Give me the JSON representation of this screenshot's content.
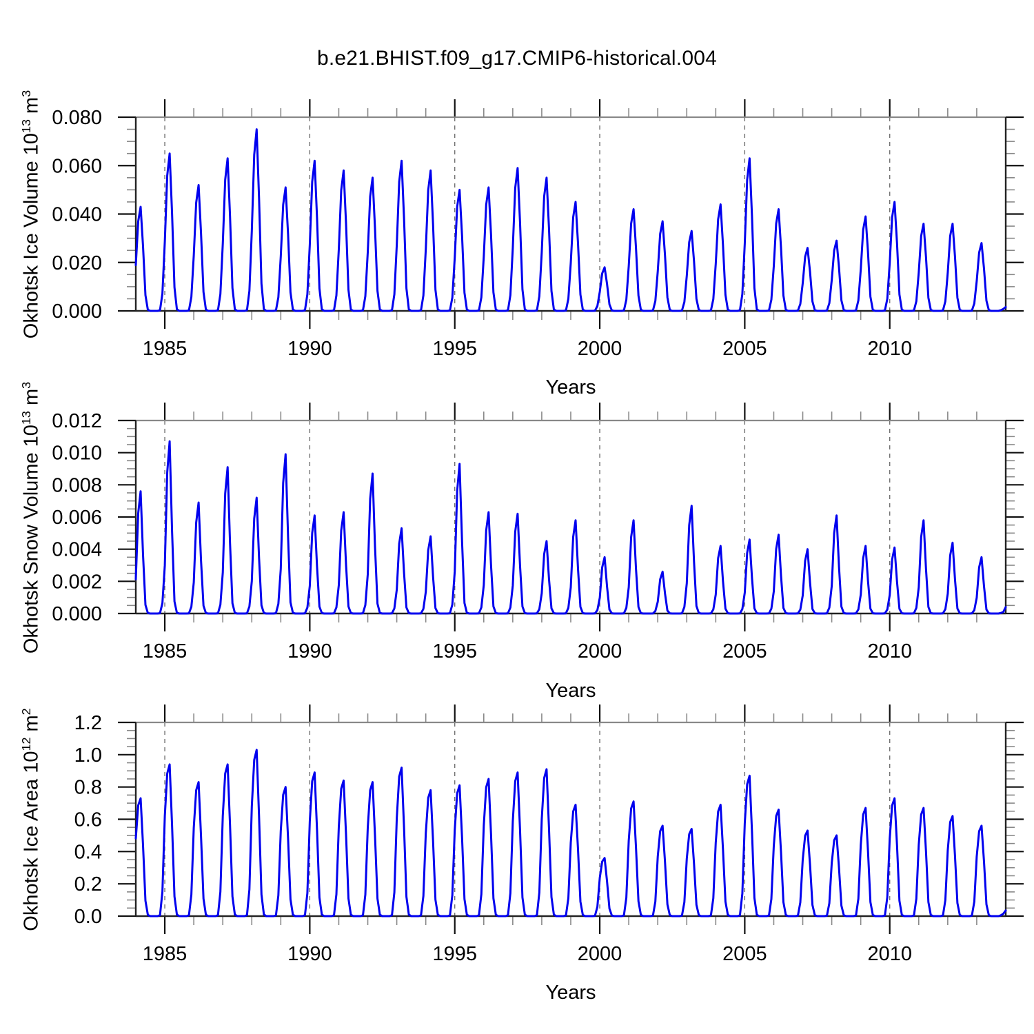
{
  "chart_data": {
    "type": "line",
    "title": "b.e21.BHIST.f09_g17.CMIP6-historical.004",
    "xlabel": "Years",
    "line_color": "#0000ee",
    "grid_color": "#666666",
    "x_start_year": 1984,
    "x_end_year": 2014,
    "xtick_major": [
      1985,
      1990,
      1995,
      2000,
      2005,
      2010
    ],
    "xtick_labels": [
      "1985",
      "1990",
      "1995",
      "2000",
      "2005",
      "2010"
    ],
    "grid_years": [
      1985,
      1990,
      1995,
      2000,
      2005,
      2010
    ],
    "legend": "none",
    "grid": "vertical-dashed",
    "panels": [
      {
        "id": "ice-volume",
        "ylabel_base": "Okhotsk Ice Volume 10",
        "ylabel_exp": "13",
        "ylabel_unit": " m",
        "ylabel_unit_exp": "3",
        "ymax": 0.08,
        "ytick_values": [
          0,
          0.02,
          0.04,
          0.06,
          0.08
        ],
        "ytick_labels": [
          "0.000",
          "0.020",
          "0.040",
          "0.060",
          "0.080"
        ],
        "yminor_step": 0.005,
        "first_year": 1984,
        "annual_peaks": [
          0.043,
          0.065,
          0.052,
          0.063,
          0.075,
          0.051,
          0.062,
          0.058,
          0.055,
          0.062,
          0.058,
          0.05,
          0.051,
          0.059,
          0.055,
          0.045,
          0.018,
          0.042,
          0.037,
          0.033,
          0.044,
          0.063,
          0.042,
          0.026,
          0.029,
          0.039,
          0.045,
          0.036,
          0.036,
          0.028
        ],
        "monthly_shape": [
          0.44,
          0.86,
          1.0,
          0.62,
          0.15,
          0.01,
          0,
          0,
          0,
          0,
          0.004,
          0.11
        ],
        "dec_2013": 0.0008,
        "end_2014": 0.0016
      },
      {
        "id": "snow-volume",
        "ylabel_base": "Okhotsk Snow Volume 10",
        "ylabel_exp": "13",
        "ylabel_unit": " m",
        "ylabel_unit_exp": "3",
        "ymax": 0.012,
        "ytick_values": [
          0,
          0.002,
          0.004,
          0.006,
          0.008,
          0.01,
          0.012
        ],
        "ytick_labels": [
          "0.000",
          "0.002",
          "0.004",
          "0.006",
          "0.008",
          "0.010",
          "0.012"
        ],
        "yminor_step": 0.0005,
        "first_year": 1984,
        "annual_peaks": [
          0.0076,
          0.0107,
          0.0069,
          0.0091,
          0.0072,
          0.0099,
          0.0061,
          0.0063,
          0.0087,
          0.0053,
          0.0048,
          0.0093,
          0.0063,
          0.0062,
          0.0045,
          0.0058,
          0.0035,
          0.0058,
          0.0026,
          0.0067,
          0.0042,
          0.0046,
          0.0049,
          0.004,
          0.0061,
          0.0042,
          0.0041,
          0.0058,
          0.0044,
          0.0035
        ],
        "monthly_shape": [
          0.28,
          0.82,
          1.0,
          0.48,
          0.07,
          0.004,
          0,
          0,
          0,
          0,
          0.002,
          0.06
        ],
        "dec_2013": 0.0001,
        "end_2014": 0.0004
      },
      {
        "id": "ice-area",
        "ylabel_base": "Okhotsk Ice Area 10",
        "ylabel_exp": "12",
        "ylabel_unit": " m",
        "ylabel_unit_exp": "2",
        "ymax": 1.2,
        "ytick_values": [
          0,
          0.2,
          0.4,
          0.6,
          0.8,
          1.0,
          1.2
        ],
        "ytick_labels": [
          "0.0",
          "0.2",
          "0.4",
          "0.6",
          "0.8",
          "1.0",
          "1.2"
        ],
        "yminor_step": 0.05,
        "first_year": 1984,
        "annual_peaks": [
          0.73,
          0.94,
          0.83,
          0.94,
          1.03,
          0.8,
          0.89,
          0.84,
          0.83,
          0.92,
          0.78,
          0.81,
          0.85,
          0.89,
          0.91,
          0.69,
          0.36,
          0.71,
          0.56,
          0.54,
          0.69,
          0.87,
          0.66,
          0.53,
          0.5,
          0.67,
          0.73,
          0.67,
          0.62,
          0.56
        ],
        "monthly_shape": [
          0.66,
          0.94,
          1.0,
          0.6,
          0.13,
          0.01,
          0,
          0,
          0,
          0,
          0.006,
          0.16
        ],
        "dec_2013": 0.015,
        "end_2014": 0.035
      }
    ]
  }
}
